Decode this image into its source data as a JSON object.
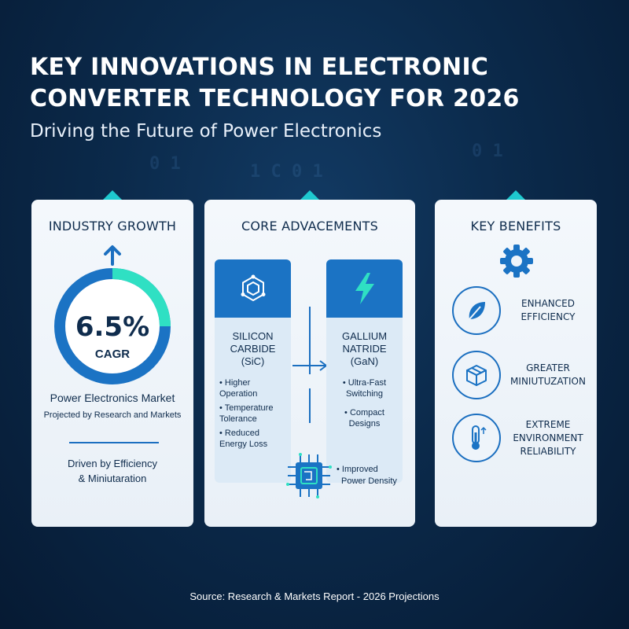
{
  "header": {
    "title_line1": "KEY INNOVATIONS IN ELECTRONIC",
    "title_line2": "CONVERTER TECHNOLOGY FOR 2026",
    "subtitle": "Driving the Future of Power Electronics"
  },
  "industry_growth": {
    "title": "INDUSTRY GROWTH",
    "value": "6.5%",
    "value_label": "CAGR",
    "ring_fill_fraction": 0.25,
    "market": "Power Electronics Market",
    "projected": "Projected by Research and Markets",
    "driven_line1": "Driven by Efficiency",
    "driven_line2": "& Miniutaration"
  },
  "core_advancements": {
    "title": "CORE ADVACEMENTS",
    "sic": {
      "name_line1": "SILICON",
      "name_line2": "CARBIDE",
      "name_line3": "(SiC)",
      "icon": "hexagon-molecule-icon",
      "bullets": [
        "• Higher Operation",
        "• Temperature Tolerance",
        "• Reduced Energy Loss"
      ]
    },
    "gan": {
      "name_line1": "GALLIUM",
      "name_line2": "NATRIDE",
      "name_line3": "(GaN)",
      "icon": "lightning-bolt-icon",
      "bullets": [
        "• Ultra-Fast Switching",
        "• Compact Designs"
      ]
    },
    "improved_line1": "• Improved",
    "improved_line2": "Power Density"
  },
  "key_benefits": {
    "title": "KEY BENEFITS",
    "items": [
      {
        "line1": "ENHANCED",
        "line2": "EFFICIENCY",
        "line3": "",
        "icon": "leaf-icon"
      },
      {
        "line1": "GREATER",
        "line2": "MINIUTUZATION",
        "line3": "",
        "icon": "box-icon"
      },
      {
        "line1": "EXTREME",
        "line2": "ENVIRONMENT",
        "line3": "RELIABILITY",
        "icon": "thermometer-icon"
      }
    ]
  },
  "footer": {
    "source": "Source: Research & Markets Report - 2026 Projections"
  },
  "colors": {
    "background": "#0b2a4b",
    "accent_blue": "#1b6fc0",
    "accent_teal": "#1ec9cf",
    "panel": "#f4f8fc"
  }
}
